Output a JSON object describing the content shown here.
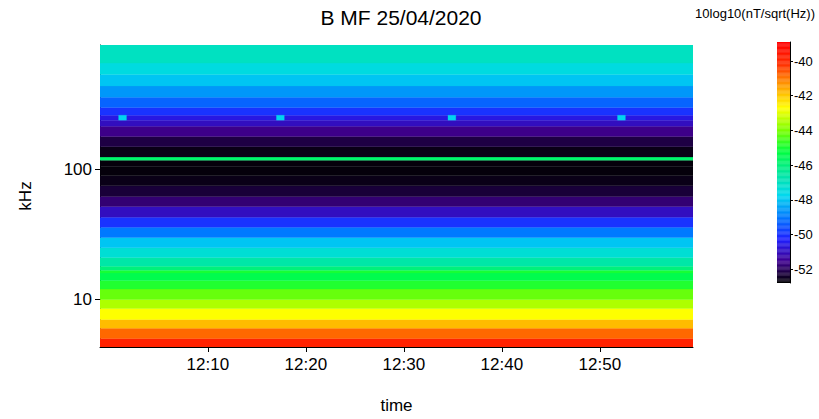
{
  "chart_data": {
    "type": "heatmap",
    "title": "B MF 25/04/2020",
    "x_label": "time",
    "y_label": "kHz",
    "log": "y",
    "grid": false,
    "xlim": [
      719,
      779.5
    ],
    "xticks": [
      {
        "value": 730,
        "label": "12:10"
      },
      {
        "value": 740,
        "label": "12:20"
      },
      {
        "value": 750,
        "label": "12:30"
      },
      {
        "value": 760,
        "label": "12:40"
      },
      {
        "value": 770,
        "label": "12:50"
      }
    ],
    "ylim": [
      4.3,
      910
    ],
    "yticks": [
      10,
      100
    ],
    "freq_edges": [
      4.3,
      5,
      6,
      7,
      8.5,
      10,
      12,
      14,
      16,
      16.8,
      18,
      21,
      25,
      30,
      36,
      43,
      52,
      62,
      75,
      90,
      105,
      118,
      125,
      150,
      180,
      215,
      240,
      262,
      300,
      360,
      440,
      540,
      660,
      910
    ],
    "levels": [
      -39.8,
      -40.8,
      -41.8,
      -42.7,
      -43.5,
      -44.2,
      -44.9,
      -45.4,
      -45.0,
      -46.0,
      -46.6,
      -47.3,
      -48.0,
      -49.0,
      -50.0,
      -51.0,
      -51.8,
      -52.3,
      -52.6,
      -52.7,
      -52.7,
      -45.8,
      -52.6,
      -52.2,
      -51.6,
      -51.0,
      -50.6,
      -50.0,
      -49.3,
      -48.6,
      -48.0,
      -47.5,
      -47.0
    ],
    "spots": [
      {
        "time": [
          720.9,
          721.7
        ],
        "freq": [
          240,
          262
        ],
        "value": -47.8
      },
      {
        "time": [
          737.0,
          737.8
        ],
        "freq": [
          240,
          262
        ],
        "value": -47.8
      },
      {
        "time": [
          754.5,
          755.3
        ],
        "freq": [
          240,
          262
        ],
        "value": -47.8
      },
      {
        "time": [
          771.8,
          772.6
        ],
        "freq": [
          240,
          262
        ],
        "value": -47.8
      }
    ],
    "colorbar": {
      "label": "10log10(nT/sqrt(Hz))",
      "range": [
        -52.8,
        -38.9
      ],
      "ticks": [
        -40,
        -42,
        -44,
        -46,
        -48,
        -50,
        -52
      ]
    }
  }
}
